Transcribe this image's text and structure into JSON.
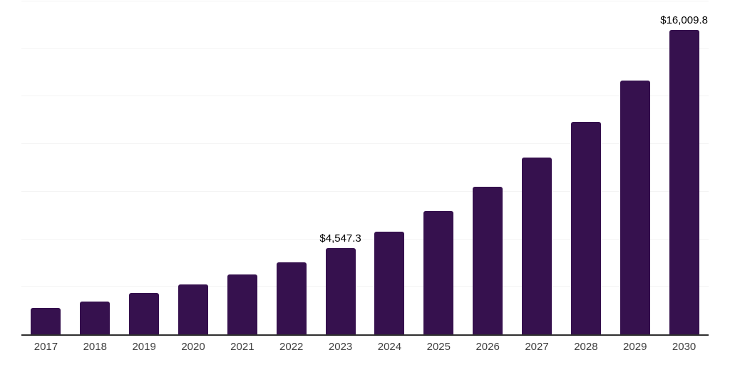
{
  "chart_data": {
    "type": "bar",
    "title": "",
    "xlabel": "",
    "ylabel": "",
    "categories": [
      "2017",
      "2018",
      "2019",
      "2020",
      "2021",
      "2022",
      "2023",
      "2024",
      "2025",
      "2026",
      "2027",
      "2028",
      "2029",
      "2030"
    ],
    "values": [
      1390,
      1740,
      2160,
      2610,
      3160,
      3780,
      4547.3,
      5400,
      6490,
      7760,
      9290,
      11160,
      13330,
      16009.8
    ],
    "bar_labels": [
      "",
      "",
      "",
      "",
      "",
      "",
      "$4,547.3",
      "",
      "",
      "",
      "",
      "",
      "",
      "$16,009.8"
    ],
    "ylim": [
      0,
      17500
    ],
    "gridline_values": [
      2500,
      5000,
      7500,
      10000,
      12500,
      15000,
      17500
    ],
    "grid": "horizontal",
    "legend_position": "none",
    "colors": {
      "bar": "#36114E",
      "gridline": "#f4f4f4",
      "axis_line": "#2e2e2e",
      "tick_label": "#3f3f3f",
      "data_label": "#000000",
      "background": "#ffffff"
    }
  }
}
